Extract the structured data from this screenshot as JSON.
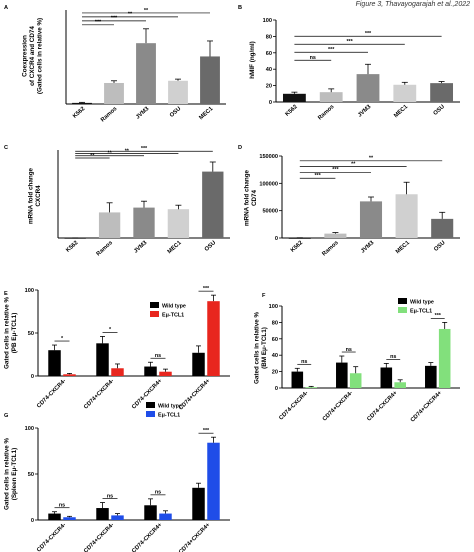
{
  "header": "Figure 3, Thavayogarajah et al.,2022",
  "chart_data": [
    {
      "id": "A",
      "letter": "A",
      "type": "bar",
      "ylabel": [
        "Coexpression",
        "of CXCR4 and CD74",
        "(Gated cells in relative %)"
      ],
      "categories": [
        "K562",
        "Ramos",
        "JVM3",
        "OSU",
        "MEC1"
      ],
      "values": [
        1,
        19,
        55,
        21,
        43
      ],
      "errors": [
        0.5,
        2,
        13,
        1.5,
        14
      ],
      "colors": [
        "#111111",
        "#bdbdbd",
        "#8a8a8a",
        "#d0d0d0",
        "#6a6a6a"
      ],
      "ylim": [
        0,
        85
      ],
      "yticks": [],
      "significance": [
        {
          "from": 0,
          "to": 1,
          "label": "***"
        },
        {
          "from": 0,
          "to": 2,
          "label": "***"
        },
        {
          "from": 0,
          "to": 3,
          "label": "**"
        },
        {
          "from": 0,
          "to": 4,
          "label": "**"
        }
      ]
    },
    {
      "id": "B",
      "letter": "B",
      "type": "bar",
      "ylabel": [
        "hMIF (ng/ml)"
      ],
      "categories": [
        "K562",
        "Ramos",
        "JVM3",
        "MEC1",
        "OSU"
      ],
      "values": [
        10,
        12,
        34,
        21,
        23
      ],
      "errors": [
        2,
        4,
        12,
        3,
        2
      ],
      "colors": [
        "#111111",
        "#bdbdbd",
        "#8a8a8a",
        "#d0d0d0",
        "#6a6a6a"
      ],
      "ylim": [
        0,
        100
      ],
      "yticks": [
        0,
        20,
        40,
        60,
        80,
        100
      ],
      "significance": [
        {
          "from": 0,
          "to": 1,
          "label": "ns"
        },
        {
          "from": 0,
          "to": 2,
          "label": "***"
        },
        {
          "from": 0,
          "to": 3,
          "label": "***"
        },
        {
          "from": 0,
          "to": 4,
          "label": "***"
        }
      ]
    },
    {
      "id": "C",
      "letter": "C",
      "type": "bar",
      "ylabel": [
        "mRNA fold change",
        "CXCR4"
      ],
      "categories": [
        "K562",
        "Ramos",
        "JVM3",
        "MEC1",
        "OSU"
      ],
      "values": [
        1,
        320,
        380,
        360,
        830
      ],
      "errors": [
        1,
        120,
        80,
        50,
        120
      ],
      "colors": [
        "#111111",
        "#bdbdbd",
        "#8a8a8a",
        "#d0d0d0",
        "#6a6a6a"
      ],
      "ylim": [
        0,
        1100
      ],
      "yticks": [],
      "significance": [
        {
          "from": 0,
          "to": 1,
          "label": "**"
        },
        {
          "from": 0,
          "to": 2,
          "label": "**"
        },
        {
          "from": 0,
          "to": 3,
          "label": "**"
        },
        {
          "from": 0,
          "to": 4,
          "label": "***"
        }
      ]
    },
    {
      "id": "D",
      "letter": "D",
      "type": "bar",
      "ylabel": [
        "mRNA fold change",
        "CD74"
      ],
      "categories": [
        "K562",
        "Ramos",
        "JVM3",
        "MEC1",
        "OSU"
      ],
      "values": [
        1,
        8000,
        67000,
        80000,
        35000
      ],
      "errors": [
        500,
        2000,
        8000,
        22000,
        12000
      ],
      "colors": [
        "#111111",
        "#bdbdbd",
        "#8a8a8a",
        "#d0d0d0",
        "#6a6a6a"
      ],
      "ylim": [
        0,
        150000
      ],
      "yticks": [
        0,
        50000,
        100000,
        150000
      ],
      "significance": [
        {
          "from": 0,
          "to": 1,
          "label": "***"
        },
        {
          "from": 0,
          "to": 2,
          "label": "***"
        },
        {
          "from": 0,
          "to": 3,
          "label": "**"
        },
        {
          "from": 0,
          "to": 4,
          "label": "**"
        }
      ]
    },
    {
      "id": "E",
      "letter": "E",
      "type": "grouped-bar",
      "ylabel": [
        "Gated cells in relative %",
        "(PB Eμ-TCL1)"
      ],
      "categories": [
        "CD74-CXCR4-",
        "CD74+CXCR4-",
        "CD74-CXCR4+",
        "CD74+CXCR4+"
      ],
      "series": [
        {
          "name": "Wild type",
          "color": "#000000",
          "values": [
            30,
            38,
            11,
            27
          ],
          "errors": [
            6,
            8,
            5,
            8
          ]
        },
        {
          "name": "Eμ-TCL1",
          "color": "#e8261e",
          "values": [
            2,
            9,
            5,
            87
          ],
          "errors": [
            1,
            5,
            3,
            7
          ]
        }
      ],
      "significance": [
        {
          "group": 0,
          "label": "*"
        },
        {
          "group": 1,
          "label": "*"
        },
        {
          "group": 2,
          "label": "ns"
        },
        {
          "group": 3,
          "label": "***"
        }
      ],
      "ylim": [
        0,
        100
      ],
      "yticks": [
        0,
        50,
        100
      ]
    },
    {
      "id": "F",
      "letter": "F",
      "type": "grouped-bar",
      "ylabel": [
        "Gated cells in relative %",
        "(BM Eμ-TCL1)"
      ],
      "categories": [
        "CD74-CXCR4-",
        "CD74+CXCR4-",
        "CD74-CXCR4+",
        "CD74+CXCR4+"
      ],
      "series": [
        {
          "name": "Wild type",
          "color": "#000000",
          "values": [
            20,
            31,
            25,
            27
          ],
          "errors": [
            4,
            8,
            5,
            4
          ]
        },
        {
          "name": "Eμ-TCL1",
          "color": "#82e07c",
          "values": [
            1,
            18,
            7,
            72
          ],
          "errors": [
            1,
            8,
            3,
            8
          ]
        }
      ],
      "significance": [
        {
          "group": 0,
          "label": "ns"
        },
        {
          "group": 1,
          "label": "ns"
        },
        {
          "group": 2,
          "label": "ns"
        },
        {
          "group": 3,
          "label": "***"
        }
      ],
      "ylim": [
        0,
        100
      ],
      "yticks": [
        0,
        20,
        40,
        60,
        80,
        100
      ]
    },
    {
      "id": "G",
      "letter": "G",
      "type": "grouped-bar",
      "ylabel": [
        "Gated cells in relative %",
        "(Spleen Eμ-TCL1)"
      ],
      "categories": [
        "CD74-CXCR4-",
        "CD74+CXCR4-",
        "CD74-CXCR4+",
        "CD74+CXCR4+"
      ],
      "series": [
        {
          "name": "Wild type",
          "color": "#000000",
          "values": [
            7,
            13,
            16,
            35
          ],
          "errors": [
            2,
            6,
            7,
            5
          ]
        },
        {
          "name": "Eμ-TCL1",
          "color": "#1f4de8",
          "values": [
            3,
            5,
            7,
            84
          ],
          "errors": [
            1,
            2,
            3,
            6
          ]
        }
      ],
      "significance": [
        {
          "group": 0,
          "label": "ns"
        },
        {
          "group": 1,
          "label": "ns"
        },
        {
          "group": 2,
          "label": "ns"
        },
        {
          "group": 3,
          "label": "***"
        }
      ],
      "ylim": [
        0,
        100
      ],
      "yticks": [
        0,
        50,
        100
      ]
    }
  ]
}
